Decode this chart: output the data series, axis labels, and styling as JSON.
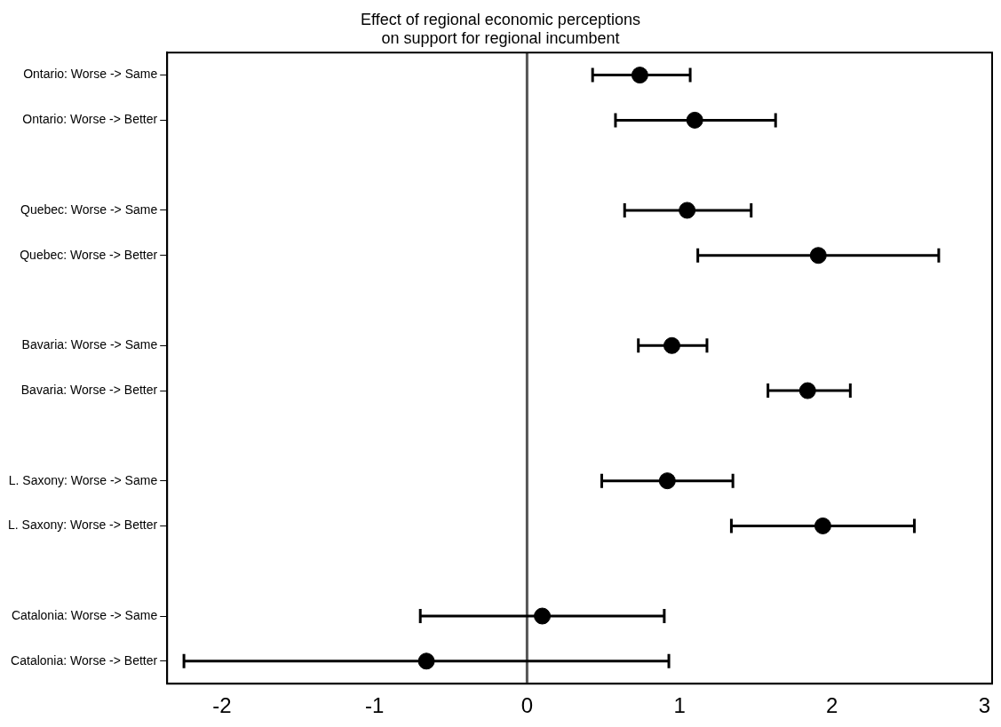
{
  "chart_data": {
    "type": "scatter",
    "orientation": "horizontal",
    "title": "Effect of regional economic perceptions\non support for regional incumbent",
    "categories": [
      "Ontario: Worse -> Same",
      "Ontario: Worse -> Better",
      null,
      "Quebec: Worse -> Same",
      "Quebec: Worse -> Better",
      null,
      "Bavaria: Worse -> Same",
      "Bavaria: Worse -> Better",
      null,
      "L. Saxony: Worse -> Same",
      "L. Saxony: Worse -> Better",
      null,
      "Catalonia: Worse -> Same",
      "Catalonia: Worse -> Better"
    ],
    "values": [
      0.74,
      1.1,
      null,
      1.05,
      1.91,
      null,
      0.95,
      1.84,
      null,
      0.92,
      1.94,
      null,
      0.1,
      -0.66
    ],
    "errors": [
      [
        0.43,
        1.07
      ],
      [
        0.58,
        1.63
      ],
      null,
      [
        0.64,
        1.47
      ],
      [
        1.12,
        2.7
      ],
      null,
      [
        0.73,
        1.18
      ],
      [
        1.58,
        2.12
      ],
      null,
      [
        0.49,
        1.35
      ],
      [
        1.34,
        2.54
      ],
      null,
      [
        -0.7,
        0.9
      ],
      [
        -2.25,
        0.93
      ]
    ],
    "color": "#000000",
    "marker": "circle",
    "xlim": [
      -2.36,
      3.05
    ],
    "xticks": [
      -2,
      -1,
      0,
      1,
      2,
      3
    ],
    "ref_lines": [
      {
        "axis": "x",
        "value": 0,
        "color": "#555555"
      }
    ],
    "grid": false,
    "legend": false
  }
}
